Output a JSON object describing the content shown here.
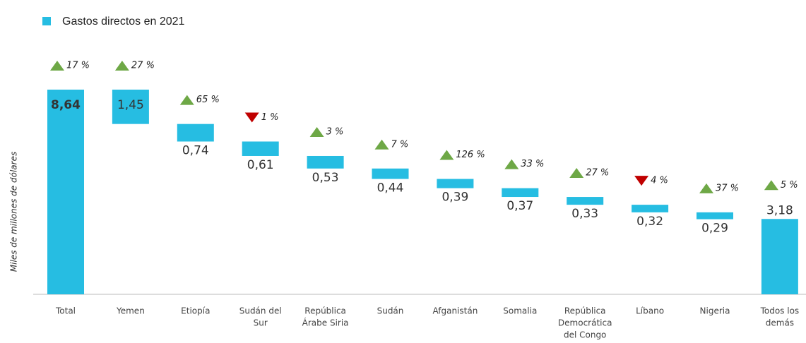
{
  "chart_data": {
    "type": "waterfall",
    "y_axis_label": "Miles de millones de dólares",
    "series": [
      {
        "name": "Gastos directos en 2021",
        "color": "#26bde2",
        "values": [
          8.64,
          1.45,
          0.74,
          0.61,
          0.53,
          0.44,
          0.39,
          0.37,
          0.33,
          0.32,
          0.29,
          3.18
        ],
        "value_labels": [
          "8,64",
          "1,45",
          "0,74",
          "0,61",
          "0,53",
          "0,44",
          "0,39",
          "0,37",
          "0,33",
          "0,32",
          "0,29",
          "3,18"
        ],
        "measure": [
          "absolute",
          "relative",
          "relative",
          "relative",
          "relative",
          "relative",
          "relative",
          "relative",
          "relative",
          "relative",
          "relative",
          "absolute"
        ]
      }
    ],
    "categories": [
      [
        "Total"
      ],
      [
        "Yemen"
      ],
      [
        "Etiopía"
      ],
      [
        "Sudán del",
        "Sur"
      ],
      [
        "República",
        "Árabe Siria"
      ],
      [
        "Sudán"
      ],
      [
        "Afganistán"
      ],
      [
        "Somalia"
      ],
      [
        "República",
        "Democrática",
        "del Congo"
      ],
      [
        "Líbano"
      ],
      [
        "Nigeria"
      ],
      [
        "Todos los",
        "demás"
      ]
    ],
    "changes": [
      17,
      27,
      65,
      1,
      3,
      7,
      126,
      33,
      27,
      4,
      37,
      5
    ],
    "change_labels": [
      "17 %",
      "27 %",
      "65 %",
      "1 %",
      "3 %",
      "7 %",
      "126 %",
      "33 %",
      "27 %",
      "4 %",
      "37 %",
      "5 %"
    ],
    "change_direction": [
      "up",
      "up",
      "up",
      "down",
      "up",
      "up",
      "up",
      "up",
      "up",
      "down",
      "up",
      "up"
    ],
    "direction_colors": {
      "up": "#6ea846",
      "down": "#c00000"
    }
  }
}
